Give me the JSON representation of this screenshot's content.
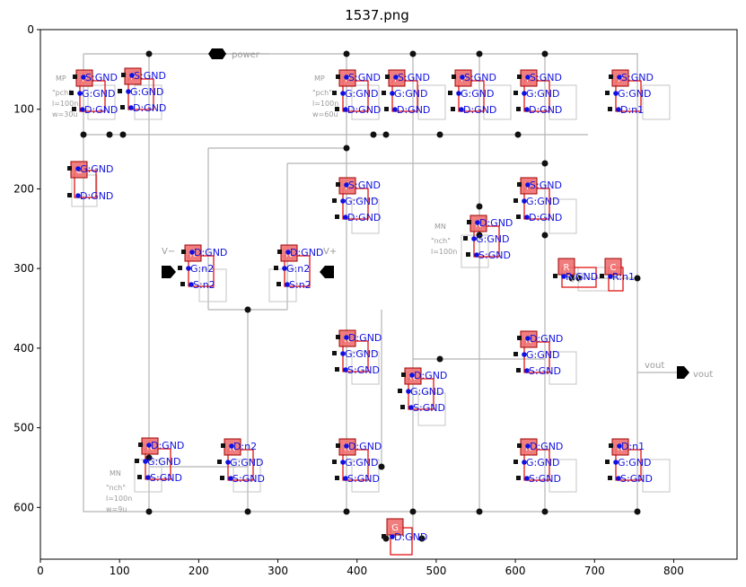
{
  "title": "1537.png",
  "x_ticks": [
    "0",
    "100",
    "200",
    "300",
    "400",
    "500",
    "600",
    "700",
    "800"
  ],
  "y_ticks": [
    "0",
    "100",
    "200",
    "300",
    "400",
    "500",
    "600"
  ],
  "schematic_text": {
    "power": "power",
    "vout": "vout",
    "vout1": "vout",
    "vminus": "V−",
    "vplus": "V+"
  },
  "devices": [
    {
      "type": "P",
      "labels": [
        "S:GND",
        "G:GND",
        "D:GND"
      ]
    },
    {
      "type": "P",
      "labels": [
        "S:GND",
        "G:GND",
        "D:GND"
      ]
    },
    {
      "type": "P",
      "labels": [
        "S:GND",
        "G:GND",
        "D:GND"
      ]
    },
    {
      "type": "P",
      "labels": [
        "S:GND",
        "G:GND",
        "D:GND"
      ]
    },
    {
      "type": "P",
      "labels": [
        "S:GND",
        "G:GND",
        "D:GND"
      ]
    },
    {
      "type": "P",
      "labels": [
        "S:GND",
        "G:GND",
        "D:GND"
      ]
    },
    {
      "type": "P",
      "labels": [
        "S:GND",
        "G:GND",
        "D:n1"
      ]
    },
    {
      "type": "C",
      "labels": [
        "G:GND",
        "D:GND"
      ]
    },
    {
      "type": "P",
      "labels": [
        "S:GND",
        "G:GND",
        "D:GND"
      ]
    },
    {
      "type": "P",
      "labels": [
        "S:GND",
        "G:GND",
        "D:GND"
      ]
    },
    {
      "type": "N",
      "labels": [
        "D:GND",
        "G:GND",
        "S:GND"
      ]
    },
    {
      "type": "N",
      "labels": [
        "D:GND",
        "G:n2",
        "S:n2"
      ]
    },
    {
      "type": "N",
      "labels": [
        "D:GND",
        "G:n2",
        "S:n2"
      ]
    },
    {
      "type": "R",
      "labels": [
        "R:GND"
      ]
    },
    {
      "type": "C",
      "labels": [
        "R:n1"
      ]
    },
    {
      "type": "N",
      "labels": [
        "D:GND",
        "G:GND",
        "S:GND"
      ]
    },
    {
      "type": "N",
      "labels": [
        "D:GND",
        "G:GND",
        "S:GND"
      ]
    },
    {
      "type": "N",
      "labels": [
        "D:GND",
        "G:GND",
        "S:GND"
      ]
    },
    {
      "type": "N",
      "labels": [
        "D:GND",
        "G:GND",
        "S:GND"
      ]
    },
    {
      "type": "N",
      "labels": [
        "D:n2",
        "G:GND",
        "S:GND"
      ]
    },
    {
      "type": "N",
      "labels": [
        "D:GND",
        "G:GND",
        "S:GND"
      ]
    },
    {
      "type": "N",
      "labels": [
        "D:GND",
        "G:GND",
        "S:GND"
      ]
    },
    {
      "type": "N",
      "labels": [
        "D:n1",
        "G:GND",
        "S:GND"
      ]
    },
    {
      "type": "G",
      "labels": [
        "D:GND"
      ]
    }
  ]
}
